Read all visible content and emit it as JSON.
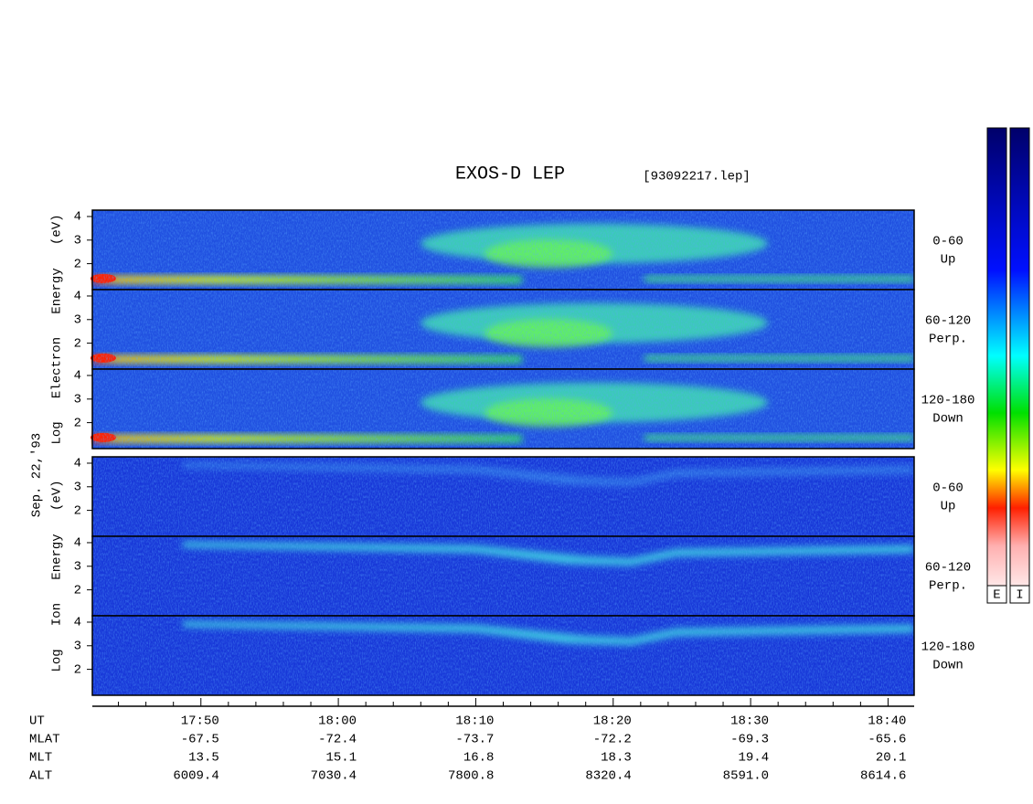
{
  "chart_data": {
    "type": "spectrogram",
    "title": "EXOS-D LEP",
    "file": "[93092217.lep]",
    "date": "Sep. 22,'93",
    "groups": [
      {
        "label": "Log   Electron   Energy   (eV)"
      },
      {
        "label": "Log   Ion   Energy   (eV)"
      }
    ],
    "panels": [
      {
        "group": 0,
        "label": [
          "0-60",
          "Up"
        ]
      },
      {
        "group": 0,
        "label": [
          "60-120",
          "Perp."
        ]
      },
      {
        "group": 0,
        "label": [
          "120-180",
          "Down"
        ]
      },
      {
        "group": 1,
        "label": [
          "0-60",
          "Up"
        ]
      },
      {
        "group": 1,
        "label": [
          "60-120",
          "Perp."
        ]
      },
      {
        "group": 1,
        "label": [
          "120-180",
          "Down"
        ]
      }
    ],
    "ylim": [
      0.9,
      4.27
    ],
    "yticks": [
      2,
      3,
      4
    ],
    "xlabel": "UT",
    "xlim": [
      1062.1,
      1121.9
    ],
    "xticks": [
      {
        "value": 1070,
        "label": "17:50"
      },
      {
        "value": 1080,
        "label": "18:00"
      },
      {
        "value": 1090,
        "label": "18:10"
      },
      {
        "value": 1100,
        "label": "18:20"
      },
      {
        "value": 1110,
        "label": "18:30"
      },
      {
        "value": 1120,
        "label": "18:40"
      }
    ],
    "xminorticks": [
      1064,
      1066,
      1068,
      1072,
      1074,
      1076,
      1078,
      1082,
      1084,
      1086,
      1088,
      1092,
      1094,
      1096,
      1098,
      1102,
      1104,
      1106,
      1108,
      1112,
      1114,
      1116,
      1118
    ],
    "rows": [
      {
        "name": "MLAT",
        "values": [
          "-67.5",
          "-72.4",
          "-73.7",
          "-72.2",
          "-69.3",
          "-65.6"
        ]
      },
      {
        "name": "MLT",
        "values": [
          "13.5",
          "15.1",
          "16.8",
          "18.3",
          "19.4",
          "20.1"
        ]
      },
      {
        "name": "ALT",
        "values": [
          "6009.4",
          "7030.4",
          "7800.8",
          "8320.4",
          "8591.0",
          "8614.6"
        ]
      }
    ],
    "colorbar": [
      "E",
      "I"
    ]
  }
}
